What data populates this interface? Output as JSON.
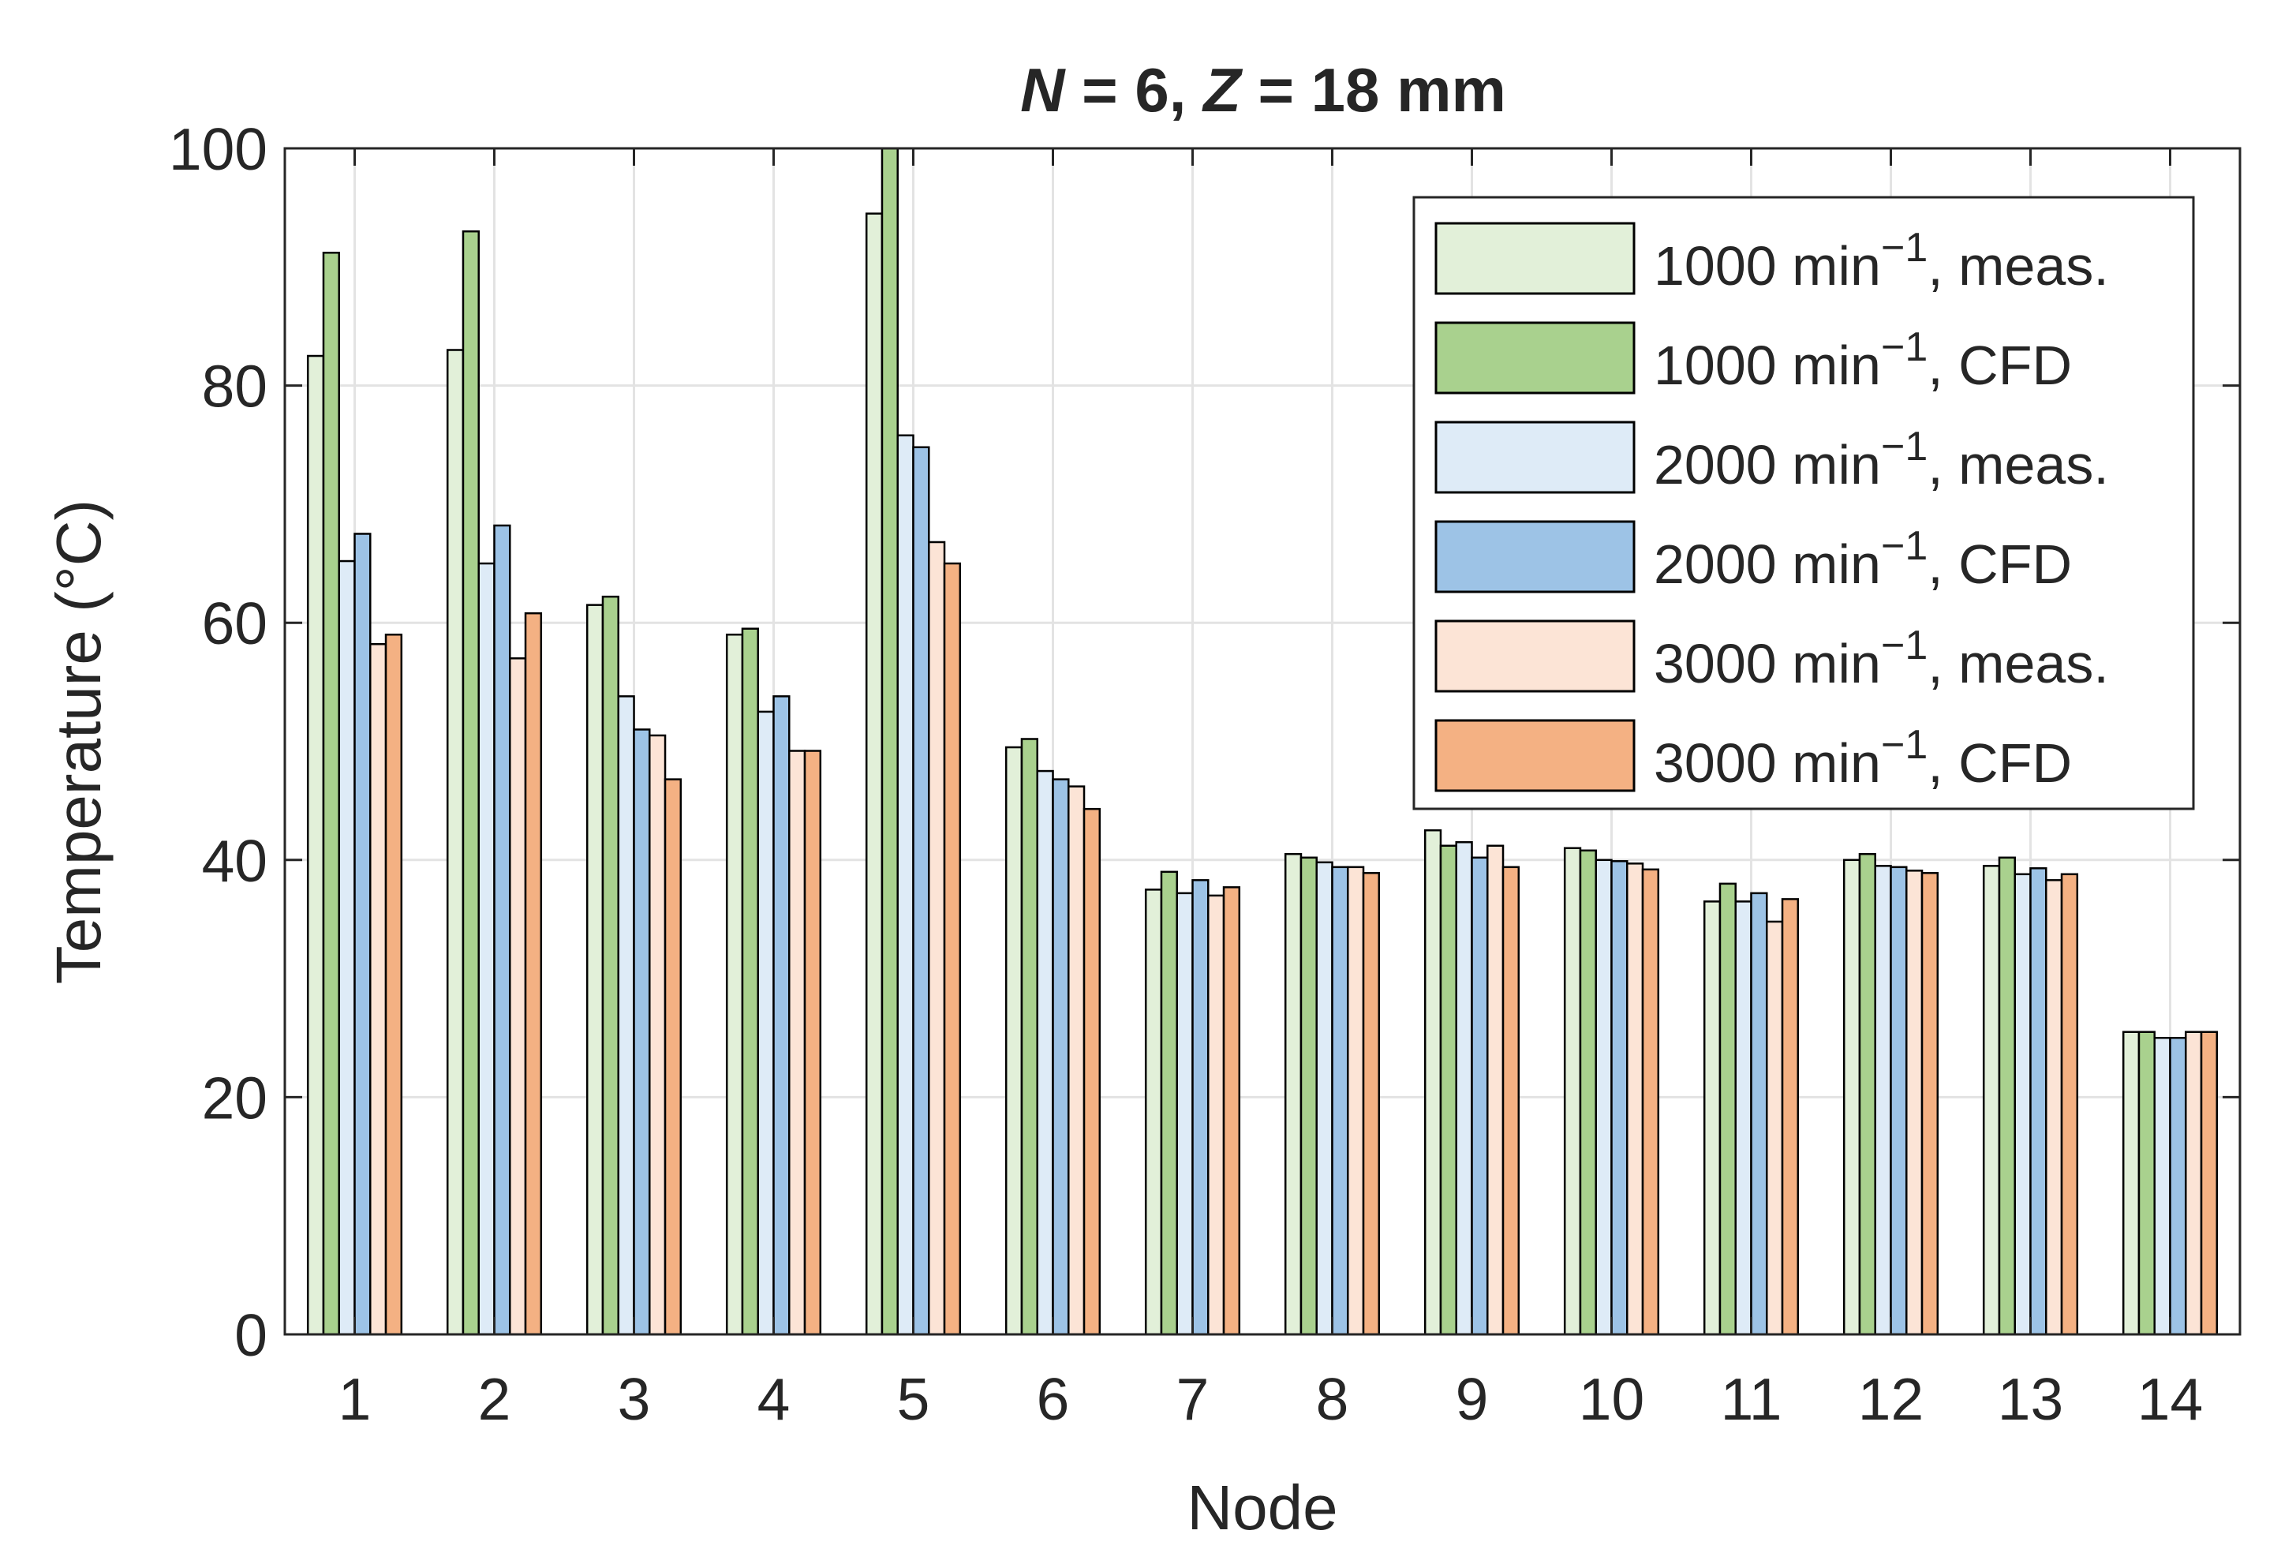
{
  "chart_data": {
    "type": "bar",
    "title": {
      "N_symbol": "N",
      "N_eq": " = 6, ",
      "Z_symbol": "Z",
      "Z_eq": " = 18 mm"
    },
    "xlabel": "Node",
    "ylabel": "Temperature (°C)",
    "categories": [
      "1",
      "2",
      "3",
      "4",
      "5",
      "6",
      "7",
      "8",
      "9",
      "10",
      "11",
      "12",
      "13",
      "14"
    ],
    "ylim": [
      0,
      100
    ],
    "yticks": [
      "0",
      "20",
      "40",
      "60",
      "80",
      "100"
    ],
    "grid": true,
    "legend_position": "top-right",
    "series": [
      {
        "name": "1000 min⁻¹, meas.",
        "label_main": "1000 min",
        "label_sup": "−1",
        "label_rest": ", meas.",
        "color": "#E2F0D9",
        "values": [
          82.5,
          83,
          61.5,
          59,
          94.5,
          49.5,
          37.5,
          40.5,
          42.5,
          41,
          36.5,
          40,
          39.5,
          25.5
        ]
      },
      {
        "name": "1000 min⁻¹, CFD",
        "label_main": "1000 min",
        "label_sup": "−1",
        "label_rest": ", CFD",
        "color": "#A9D18E",
        "values": [
          91.2,
          93,
          62.2,
          59.5,
          100,
          50.2,
          39,
          40.2,
          41.2,
          40.8,
          38,
          40.5,
          40.2,
          25.5
        ]
      },
      {
        "name": "2000 min⁻¹, meas.",
        "label_main": "2000 min",
        "label_sup": "−1",
        "label_rest": ", meas.",
        "color": "#DEEBF7",
        "values": [
          65.2,
          65,
          53.8,
          52.5,
          75.8,
          47.5,
          37.2,
          39.8,
          41.5,
          40,
          36.5,
          39.5,
          38.8,
          25
        ]
      },
      {
        "name": "2000 min⁻¹, CFD",
        "label_main": "2000 min",
        "label_sup": "−1",
        "label_rest": ", CFD",
        "color": "#9DC3E6",
        "values": [
          67.5,
          68.2,
          51,
          53.8,
          74.8,
          46.8,
          38.3,
          39.4,
          40.2,
          39.9,
          37.2,
          39.4,
          39.3,
          25
        ]
      },
      {
        "name": "3000 min⁻¹, meas.",
        "label_main": "3000 min",
        "label_sup": "−1",
        "label_rest": ", meas.",
        "color": "#FCE4D6",
        "values": [
          58.2,
          57,
          50.5,
          49.2,
          66.8,
          46.2,
          37,
          39.4,
          41.2,
          39.7,
          34.8,
          39.1,
          38.3,
          25.5
        ]
      },
      {
        "name": "3000 min⁻¹, CFD",
        "label_main": "3000 min",
        "label_sup": "−1",
        "label_rest": ", CFD",
        "color": "#F4B183",
        "values": [
          59,
          60.8,
          46.8,
          49.2,
          65,
          44.3,
          37.7,
          38.9,
          39.4,
          39.2,
          36.7,
          38.9,
          38.8,
          25.5
        ]
      }
    ]
  }
}
